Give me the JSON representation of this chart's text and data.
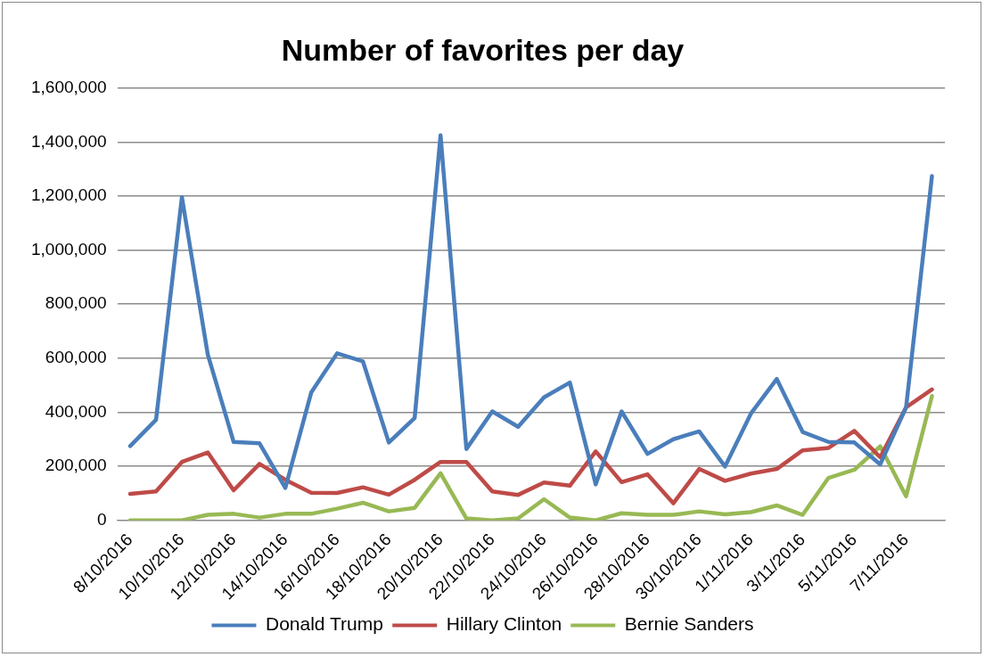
{
  "chart_data": {
    "type": "line",
    "title": "Number of favorites per day",
    "categories": [
      "8/10/2016",
      null,
      "10/10/2016",
      null,
      "12/10/2016",
      null,
      "14/10/2016",
      null,
      "16/10/2016",
      null,
      "18/10/2016",
      null,
      "20/10/2016",
      null,
      "22/10/2016",
      null,
      "24/10/2016",
      null,
      "26/10/2016",
      null,
      "28/10/2016",
      null,
      "30/10/2016",
      null,
      "1/11/2016",
      null,
      "3/11/2016",
      null,
      "5/11/2016",
      null,
      "7/11/2016",
      null
    ],
    "series": [
      {
        "name": "Donald Trump",
        "color": "#4a7ebb",
        "values": [
          275000,
          372000,
          1196000,
          614000,
          290000,
          285000,
          120000,
          473000,
          618000,
          588000,
          288000,
          379000,
          1425000,
          264000,
          403000,
          346000,
          455000,
          510000,
          133000,
          403000,
          246000,
          300000,
          329000,
          199000,
          395000,
          523000,
          327000,
          290000,
          288000,
          207000,
          418000,
          1274000
        ]
      },
      {
        "name": "Hillary Clinton",
        "color": "#be4b48",
        "values": [
          98000,
          107000,
          216000,
          251000,
          111000,
          209000,
          150000,
          102000,
          101000,
          122000,
          95000,
          150000,
          216000,
          216000,
          107000,
          94000,
          140000,
          128000,
          255000,
          141000,
          170000,
          63000,
          190000,
          146000,
          173000,
          190000,
          259000,
          268000,
          331000,
          233000,
          418000,
          484000
        ]
      },
      {
        "name": "Bernie Sanders",
        "color": "#98b954",
        "values": [
          0,
          0,
          0,
          20000,
          24000,
          10000,
          24000,
          24000,
          43000,
          65000,
          33000,
          46000,
          174000,
          7000,
          0,
          7000,
          78000,
          10000,
          0,
          26000,
          20000,
          20000,
          33000,
          22000,
          30000,
          55000,
          20000,
          157000,
          187000,
          274000,
          89000,
          460000
        ]
      }
    ],
    "ylim": [
      0,
      1600000
    ],
    "yticks": [
      {
        "value": 0,
        "label": "0"
      },
      {
        "value": 200000,
        "label": "200,000"
      },
      {
        "value": 400000,
        "label": "400,000"
      },
      {
        "value": 600000,
        "label": "600,000"
      },
      {
        "value": 800000,
        "label": "800,000"
      },
      {
        "value": 1000000,
        "label": "1,000,000"
      },
      {
        "value": 1200000,
        "label": "1,200,000"
      },
      {
        "value": 1400000,
        "label": "1,400,000"
      },
      {
        "value": 1600000,
        "label": "1,600,000"
      }
    ],
    "grid": "y",
    "legend": "bottom",
    "marker": "none",
    "line_style": "solid"
  }
}
